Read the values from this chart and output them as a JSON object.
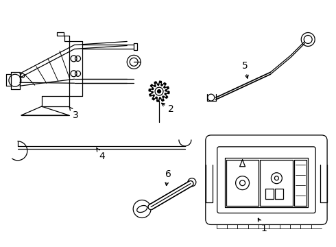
{
  "bg_color": "#ffffff",
  "line_color": "#000000",
  "fig_width": 4.9,
  "fig_height": 3.6,
  "dpi": 100
}
